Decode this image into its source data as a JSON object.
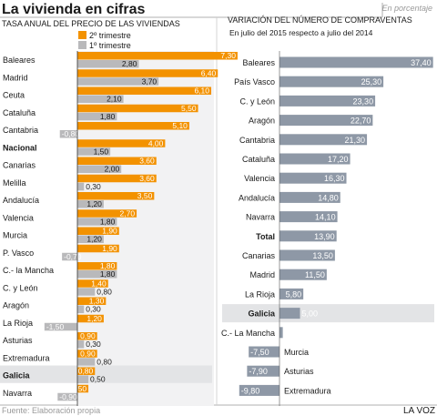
{
  "header": {
    "title": "La vivienda en cifras",
    "note": "En porcentaje"
  },
  "footer": {
    "source": "Fuente: Elaboración propia",
    "brand": "LA VOZ"
  },
  "colors": {
    "orange": "#f39200",
    "gray": "#b9b9bb",
    "slate": "#8e98a6",
    "highlight": "#e3e4e6",
    "text": "#1a1a1a",
    "muted": "#9a9a9a"
  },
  "chart_data": [
    {
      "type": "bar",
      "orientation": "horizontal",
      "title": "TASA ANUAL DEL PRECIO DE LAS VIVIENDAS",
      "legend": {
        "placement": "top-right"
      },
      "highlight": [
        "Nacional",
        "Galicia"
      ],
      "categories": [
        "Baleares",
        "Madrid",
        "Ceuta",
        "Cataluña",
        "Cantabria",
        "Nacional",
        "Canarias",
        "Melilla",
        "Andalucía",
        "Valencia",
        "Murcia",
        "P. Vasco",
        "C.- la Mancha",
        "C. y León",
        "Aragón",
        "La Rioja",
        "Asturias",
        "Extremadura",
        "Galicia",
        "Navarra"
      ],
      "series": [
        {
          "name": "2º trimestre",
          "color": "#f39200",
          "values": [
            7.3,
            6.4,
            6.1,
            5.5,
            5.1,
            4.0,
            3.6,
            3.6,
            3.5,
            2.7,
            1.9,
            1.9,
            1.8,
            1.4,
            1.3,
            1.2,
            0.9,
            0.9,
            0.8,
            0.5
          ],
          "labels": [
            "7,30",
            "6,40",
            "6,10",
            "5,50",
            "5,10",
            "4,00",
            "3,60",
            "3,60",
            "3,50",
            "2,70",
            "1,90",
            "1,90",
            "1,80",
            "1,40",
            "1,30",
            "1,20",
            "0,90",
            "0,90",
            "0,80",
            "0,50"
          ]
        },
        {
          "name": "1º trimestre",
          "color": "#b9b9bb",
          "values": [
            2.8,
            3.7,
            2.1,
            1.8,
            -0.8,
            1.5,
            2.0,
            0.3,
            1.2,
            1.8,
            1.2,
            -0.7,
            1.8,
            0.8,
            0.3,
            -1.5,
            0.3,
            0.8,
            0.5,
            -0.9
          ],
          "labels": [
            "2,80",
            "3,70",
            "2,10",
            "1,80",
            "-0,80",
            "1,50",
            "2,00",
            "0,30",
            "1,20",
            "1,80",
            "1,20",
            "-0,70",
            "1,80",
            "0,80",
            "0,30",
            "-1,50",
            "0,30",
            "0,80",
            "0,50",
            "-0,90"
          ]
        }
      ]
    },
    {
      "type": "bar",
      "orientation": "horizontal",
      "title": "VARIACIÓN DEL NÚMERO DE COMPRAVENTAS",
      "subtitle": "En julio del 2015 respecto a julio del 2014",
      "highlight": [
        "Total",
        "Galicia"
      ],
      "categories": [
        "Baleares",
        "País Vasco",
        "C. y León",
        "Aragón",
        "Cantabria",
        "Cataluña",
        "Valencia",
        "Andalucía",
        "Navarra",
        "Total",
        "Canarias",
        "Madrid",
        "La Rioja",
        "Galicia",
        "C.- La Mancha",
        "Murcia",
        "Asturias",
        "Extremadura"
      ],
      "series": [
        {
          "color": "#8e98a6",
          "values": [
            37.4,
            25.3,
            23.3,
            22.7,
            21.3,
            17.2,
            16.3,
            14.8,
            14.1,
            13.9,
            13.5,
            11.5,
            5.8,
            5.0,
            0.8,
            -7.5,
            -7.9,
            -9.8
          ],
          "labels": [
            "37,40",
            "25,30",
            "23,30",
            "22,70",
            "21,30",
            "17,20",
            "16,30",
            "14,80",
            "14,10",
            "13,90",
            "13,50",
            "11,50",
            "5,80",
            "5,00",
            "0,80",
            "-7,50",
            "-7,90",
            "-9,80"
          ]
        }
      ]
    }
  ]
}
